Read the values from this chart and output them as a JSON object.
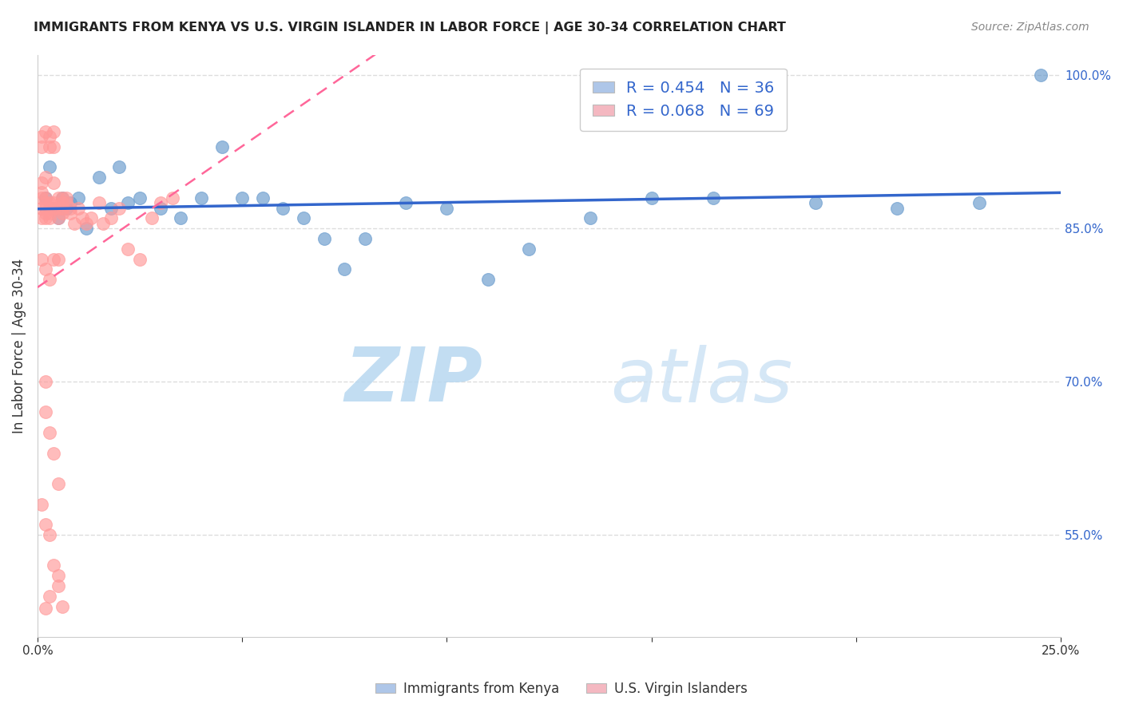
{
  "title": "IMMIGRANTS FROM KENYA VS U.S. VIRGIN ISLANDER IN LABOR FORCE | AGE 30-34 CORRELATION CHART",
  "source": "Source: ZipAtlas.com",
  "ylabel": "In Labor Force | Age 30-34",
  "xlim": [
    0.0,
    0.25
  ],
  "ylim": [
    0.45,
    1.02
  ],
  "xticks": [
    0.0,
    0.05,
    0.1,
    0.15,
    0.2,
    0.25
  ],
  "xticklabels": [
    "0.0%",
    "",
    "",
    "",
    "",
    "25.0%"
  ],
  "yticks_right": [
    1.0,
    0.85,
    0.7,
    0.55
  ],
  "yticklabels_right": [
    "100.0%",
    "85.0%",
    "70.0%",
    "55.0%"
  ],
  "kenya_r": 0.454,
  "kenya_n": 36,
  "virgin_r": 0.068,
  "virgin_n": 69,
  "kenya_color": "#6699CC",
  "virgin_color": "#FF9999",
  "kenya_line_color": "#3366CC",
  "virgin_line_color": "#FF6699",
  "kenya_x": [
    0.002,
    0.003,
    0.004,
    0.005,
    0.006,
    0.007,
    0.008,
    0.01,
    0.012,
    0.015,
    0.018,
    0.02,
    0.022,
    0.025,
    0.03,
    0.035,
    0.04,
    0.045,
    0.05,
    0.055,
    0.06,
    0.065,
    0.07,
    0.075,
    0.08,
    0.09,
    0.1,
    0.11,
    0.12,
    0.135,
    0.15,
    0.165,
    0.19,
    0.21,
    0.23,
    0.245
  ],
  "kenya_y": [
    0.88,
    0.91,
    0.87,
    0.86,
    0.88,
    0.87,
    0.875,
    0.88,
    0.85,
    0.9,
    0.87,
    0.91,
    0.875,
    0.88,
    0.87,
    0.86,
    0.88,
    0.93,
    0.88,
    0.88,
    0.87,
    0.86,
    0.84,
    0.81,
    0.84,
    0.875,
    0.87,
    0.8,
    0.83,
    0.86,
    0.88,
    0.88,
    0.875,
    0.87,
    0.875,
    1.0
  ],
  "virgin_x": [
    0.001,
    0.001,
    0.001,
    0.001,
    0.001,
    0.002,
    0.002,
    0.002,
    0.002,
    0.002,
    0.003,
    0.003,
    0.003,
    0.003,
    0.004,
    0.004,
    0.004,
    0.005,
    0.005,
    0.005,
    0.006,
    0.006,
    0.006,
    0.006,
    0.007,
    0.007,
    0.008,
    0.008,
    0.009,
    0.01,
    0.011,
    0.012,
    0.013,
    0.015,
    0.016,
    0.018,
    0.02,
    0.022,
    0.025,
    0.028,
    0.03,
    0.033,
    0.001,
    0.001,
    0.002,
    0.002,
    0.003,
    0.003,
    0.004,
    0.004,
    0.001,
    0.002,
    0.003,
    0.004,
    0.005,
    0.002,
    0.002,
    0.003,
    0.004,
    0.005,
    0.001,
    0.002,
    0.003,
    0.004,
    0.005,
    0.006,
    0.002,
    0.003,
    0.005
  ],
  "virgin_y": [
    0.88,
    0.87,
    0.86,
    0.885,
    0.895,
    0.88,
    0.875,
    0.87,
    0.865,
    0.86,
    0.875,
    0.87,
    0.865,
    0.86,
    0.875,
    0.87,
    0.895,
    0.88,
    0.87,
    0.86,
    0.875,
    0.865,
    0.87,
    0.88,
    0.88,
    0.875,
    0.87,
    0.865,
    0.855,
    0.87,
    0.86,
    0.855,
    0.86,
    0.875,
    0.855,
    0.86,
    0.87,
    0.83,
    0.82,
    0.86,
    0.875,
    0.88,
    0.93,
    0.94,
    0.9,
    0.945,
    0.93,
    0.94,
    0.93,
    0.945,
    0.82,
    0.81,
    0.8,
    0.82,
    0.82,
    0.7,
    0.67,
    0.65,
    0.63,
    0.6,
    0.58,
    0.56,
    0.55,
    0.52,
    0.5,
    0.48,
    0.478,
    0.49,
    0.51
  ],
  "watermark_zip": "ZIP",
  "watermark_atlas": "atlas",
  "legend_box_color_kenya": "#AEC6E8",
  "legend_box_color_virgin": "#F4B8C1",
  "grid_color": "#DDDDDD",
  "background_color": "#FFFFFF"
}
